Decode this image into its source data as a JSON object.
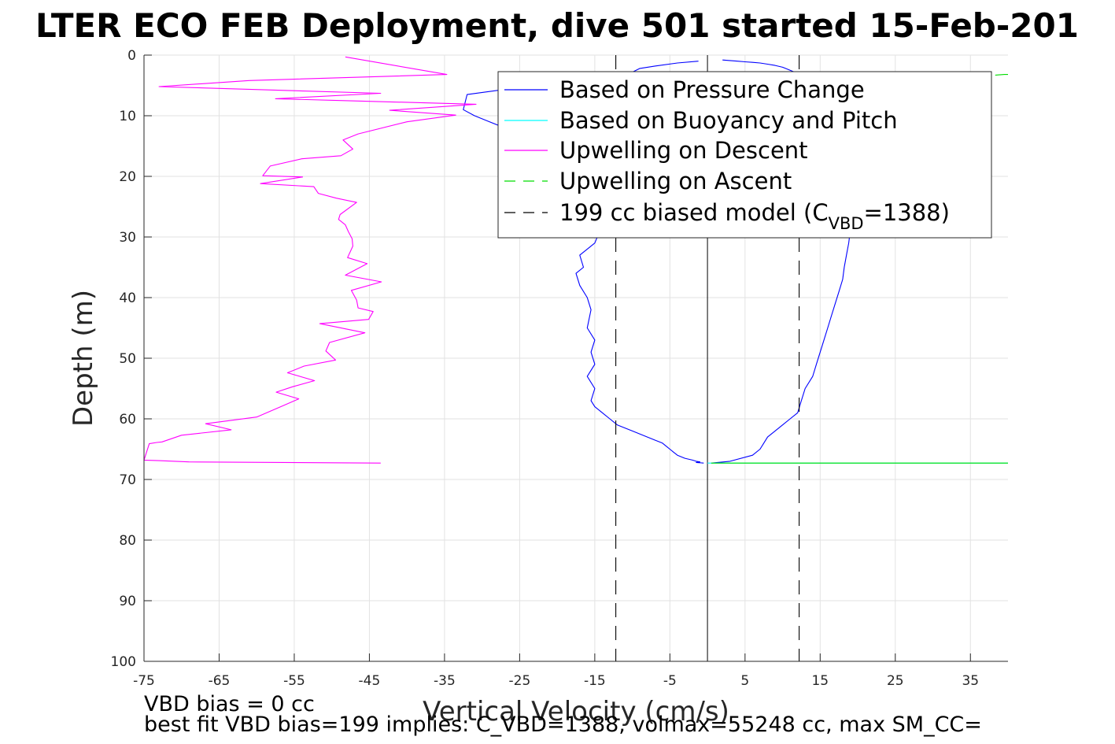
{
  "chart_data": {
    "type": "line",
    "title": "LTER ECO FEB Deployment, dive 501 started 15-Feb-201",
    "xlabel": "Vertical Velocity (cm/s)",
    "ylabel": "Depth (m)",
    "xlim": [
      -75,
      40
    ],
    "ylim": [
      0,
      100
    ],
    "y_reversed": true,
    "x_ticks": [
      -75,
      -65,
      -55,
      -45,
      -35,
      -25,
      -15,
      -5,
      5,
      15,
      25,
      35
    ],
    "y_ticks": [
      0,
      10,
      20,
      30,
      40,
      50,
      60,
      70,
      80,
      90,
      100
    ],
    "grid": true,
    "legend_position": "top-right",
    "legend": [
      {
        "name": "Based on Pressure Change",
        "color": "#0000ff",
        "dash": ""
      },
      {
        "name": "Based on Buoyancy and Pitch",
        "color": "#00ffff",
        "dash": ""
      },
      {
        "name": "Upwelling on Descent",
        "color": "#ff00ff",
        "dash": ""
      },
      {
        "name": "Upwelling on Ascent",
        "color": "#00dd00",
        "dash": "14,10"
      },
      {
        "name_pre": "199 cc biased model (C",
        "name_sub": "VBD",
        "name_post": "=1388)",
        "color": "#000000",
        "dash": "14,10"
      }
    ],
    "annotations": {
      "line1": "VBD bias = 0 cc",
      "line2": "best fit VBD bias=199 implies: C_VBD=1388, volmax=55248 cc, max SM_CC="
    },
    "series": [
      {
        "name": "Based on Pressure Change",
        "color": "#0000ff",
        "x": [
          -1.2,
          -4,
          -7,
          -9,
          -10,
          -18,
          -26,
          -32,
          -32.5,
          -31,
          -29,
          -27,
          -25.5,
          -24,
          -22,
          -21,
          -20,
          -19,
          -18,
          -17,
          -16,
          -15,
          -14,
          -13,
          -12,
          -13,
          -14,
          -15,
          -16,
          -17,
          -16.5,
          -17.5,
          -17,
          -16,
          -15.5,
          -16,
          -15,
          -15.5,
          -15,
          -16,
          -15,
          -15.5,
          -15,
          -13,
          -12,
          -10,
          -8,
          -7,
          -6,
          -5.5,
          -5,
          -4.5,
          -4,
          -3,
          -2,
          -1.5,
          -1,
          -1.5,
          -0.5
        ],
        "y": [
          1,
          1.3,
          1.8,
          2.2,
          2.8,
          4,
          5.5,
          6.5,
          9,
          10,
          11,
          12,
          13,
          14,
          15,
          16,
          17,
          18,
          19,
          20,
          21,
          22,
          23,
          24,
          25,
          26,
          28,
          31,
          32,
          33,
          35,
          36,
          38,
          40,
          42,
          45,
          47,
          49,
          51,
          53,
          55,
          57,
          58,
          60,
          61,
          62,
          63,
          63.5,
          64,
          64.5,
          65,
          65.5,
          66,
          66.5,
          66.8,
          67,
          67.1,
          67.2,
          67.3
        ]
      },
      {
        "name": "Based on Pressure Change",
        "color": "#0000ff",
        "x": [
          0.5,
          3,
          6,
          7,
          7.5,
          8,
          9,
          10,
          11,
          12,
          12.5,
          13,
          14,
          14.5,
          15,
          15.5,
          16,
          16.5,
          17,
          17.5,
          18,
          18.2,
          18.5,
          18.8,
          19,
          18.7,
          18.3,
          18,
          17.7,
          17.4,
          17,
          16.5,
          16,
          15.5,
          15,
          14.5,
          14,
          13.5,
          13,
          12.5,
          12,
          11,
          10,
          9,
          8,
          7,
          6,
          5,
          4,
          3,
          2
        ],
        "y": [
          67.3,
          67,
          66,
          65,
          64,
          63,
          62,
          61,
          60,
          59,
          57,
          55,
          53,
          51,
          49,
          47,
          45,
          43,
          41,
          39,
          37,
          35,
          33,
          31,
          29,
          27,
          25,
          23,
          21,
          19,
          17,
          15,
          13,
          11,
          9,
          7.5,
          6.5,
          5.5,
          4.5,
          3.5,
          3,
          2.5,
          2,
          1.7,
          1.5,
          1.3,
          1.2,
          1.1,
          1,
          0.9,
          0.8
        ]
      },
      {
        "name": "Upwelling on Descent",
        "color": "#ff00ff",
        "x": [
          -48.2,
          -34.7,
          -61,
          -73,
          -43.5,
          -57.5,
          -30.8,
          -42.3,
          -33.5,
          -40,
          -46.5,
          -48.5,
          -47.2,
          -48.8,
          -54,
          -58.2,
          -59.2,
          -53.9,
          -59.5,
          -52.4,
          -51.8,
          -49.4,
          -46.7,
          -48.9,
          -49.1,
          -48.2,
          -47.8,
          -47.3,
          -47.2,
          -47.9,
          -45.3,
          -48.2,
          -43.4,
          -47.4,
          -46.7,
          -46.5,
          -44.5,
          -45.1,
          -51.6,
          -45.6,
          -50.3,
          -50.8,
          -49.5,
          -53.7,
          -55.9,
          -52.3,
          -55.2,
          -57.4,
          -54.4,
          -56.6,
          -60,
          -66.8,
          -63.4,
          -70,
          -72.6,
          -73.3,
          -74.3,
          -75,
          -73,
          -69,
          -43.5
        ],
        "y": [
          0.3,
          3.2,
          4.2,
          5.2,
          6.3,
          7.2,
          8.1,
          9.1,
          9.9,
          11,
          13,
          14,
          15.5,
          16.6,
          17.1,
          18.3,
          19.9,
          20.1,
          21.2,
          21.7,
          22.8,
          23.6,
          24.3,
          26.3,
          27.1,
          28,
          29.1,
          30.3,
          31.5,
          33.4,
          34.4,
          36.3,
          37.4,
          38.8,
          40.4,
          41.7,
          42.3,
          43.6,
          44.3,
          45.8,
          47.4,
          48.8,
          50.3,
          51.3,
          52.4,
          53.7,
          54.7,
          55.6,
          56.7,
          57.9,
          59.7,
          60.8,
          61.8,
          62.7,
          63.8,
          63.9,
          64.1,
          66.8,
          66.9,
          67.1,
          67.3
        ]
      },
      {
        "name": "Based on Buoyancy and Pitch",
        "color": "#00ffff",
        "x": [
          0,
          40
        ],
        "y": [
          67.3,
          67.3
        ]
      },
      {
        "name": "Upwelling on Ascent",
        "color": "#00dd00",
        "x": [
          0.5,
          40
        ],
        "y": [
          67.3,
          67.3
        ]
      },
      {
        "name": "Upwelling on Ascent",
        "color": "#00dd00",
        "x": [
          38.3,
          39.5,
          40
        ],
        "y": [
          3.3,
          3.2,
          3.2
        ]
      },
      {
        "name": "199 cc biased model",
        "color": "#000000",
        "x": [
          -12.2,
          -12.2
        ],
        "y": [
          0,
          100
        ]
      },
      {
        "name": "199 cc biased model",
        "color": "#000000",
        "x": [
          12.2,
          12.2
        ],
        "y": [
          0,
          100
        ]
      }
    ]
  }
}
